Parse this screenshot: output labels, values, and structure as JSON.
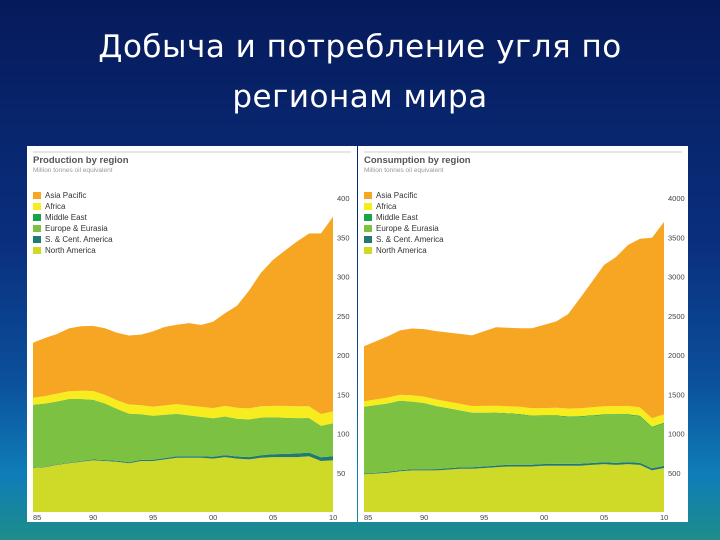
{
  "slide": {
    "title_line1": "Добыча и потребление угля по",
    "title_line2": "регионам мира"
  },
  "chart_data": [
    {
      "type": "area",
      "title": "Production by region",
      "subtitle": "Million tonnes oil equivalent",
      "x": [
        1985,
        1986,
        1987,
        1988,
        1989,
        1990,
        1991,
        1992,
        1993,
        1994,
        1995,
        1996,
        1997,
        1998,
        1999,
        2000,
        2001,
        2002,
        2003,
        2004,
        2005,
        2006,
        2007,
        2008,
        2009,
        2010
      ],
      "x_tick_labels": [
        "85",
        "90",
        "95",
        "00",
        "05",
        "10"
      ],
      "y_tick_labels": [
        "50",
        "100",
        "150",
        "200",
        "250",
        "300",
        "350",
        "400"
      ],
      "ylim": [
        0,
        4000
      ],
      "stacked": true,
      "series": [
        {
          "name": "North America",
          "color": "#cfd927",
          "values": [
            560,
            570,
            600,
            620,
            640,
            660,
            650,
            640,
            620,
            650,
            650,
            670,
            690,
            690,
            690,
            680,
            700,
            680,
            670,
            690,
            700,
            700,
            700,
            710,
            650,
            660
          ]
        },
        {
          "name": "S. & Cent. America",
          "color": "#1f7a73",
          "values": [
            5,
            6,
            7,
            8,
            9,
            10,
            11,
            12,
            13,
            14,
            15,
            17,
            19,
            20,
            21,
            23,
            25,
            27,
            29,
            32,
            36,
            40,
            45,
            47,
            48,
            50
          ]
        },
        {
          "name": "Europe & Eurasia",
          "color": "#7cc142",
          "values": [
            800,
            805,
            800,
            810,
            790,
            760,
            720,
            660,
            620,
            580,
            560,
            550,
            540,
            520,
            500,
            490,
            490,
            480,
            480,
            480,
            470,
            460,
            450,
            440,
            400,
            420
          ]
        },
        {
          "name": "Middle East",
          "color": "#16a34a",
          "values": [
            1,
            1,
            1,
            1,
            1,
            1,
            1,
            1,
            1,
            1,
            1,
            1,
            1,
            1,
            1,
            1,
            1,
            1,
            1,
            1,
            1,
            1,
            1,
            1,
            1,
            1
          ]
        },
        {
          "name": "Africa",
          "color": "#f7ec1e",
          "values": [
            90,
            95,
            100,
            100,
            105,
            110,
            110,
            110,
            115,
            115,
            115,
            120,
            125,
            125,
            130,
            130,
            135,
            140,
            140,
            145,
            145,
            150,
            150,
            150,
            150,
            150
          ]
        },
        {
          "name": "Asia Pacific",
          "color": "#f6a623",
          "values": [
            700,
            740,
            760,
            800,
            820,
            830,
            850,
            860,
            880,
            900,
            960,
            1000,
            1010,
            1050,
            1040,
            1100,
            1180,
            1300,
            1500,
            1700,
            1860,
            1980,
            2100,
            2200,
            2300,
            2480
          ]
        }
      ],
      "legend_position": "top-left",
      "grid": false
    },
    {
      "type": "area",
      "title": "Consumption by region",
      "subtitle": "Million tonnes oil equivalent",
      "x": [
        1985,
        1986,
        1987,
        1988,
        1989,
        1990,
        1991,
        1992,
        1993,
        1994,
        1995,
        1996,
        1997,
        1998,
        1999,
        2000,
        2001,
        2002,
        2003,
        2004,
        2005,
        2006,
        2007,
        2008,
        2009,
        2010
      ],
      "x_tick_labels": [
        "85",
        "90",
        "95",
        "00",
        "05",
        "10"
      ],
      "y_tick_labels": [
        "500",
        "1000",
        "1500",
        "2000",
        "2500",
        "3000",
        "3500",
        "4000"
      ],
      "ylim": [
        0,
        4000
      ],
      "stacked": true,
      "series": [
        {
          "name": "North America",
          "color": "#cfd927",
          "values": [
            480,
            490,
            500,
            520,
            530,
            530,
            530,
            540,
            550,
            550,
            560,
            570,
            580,
            580,
            580,
            590,
            590,
            590,
            590,
            600,
            610,
            600,
            610,
            600,
            530,
            560
          ]
        },
        {
          "name": "S. & Cent. America",
          "color": "#1f7a73",
          "values": [
            10,
            11,
            12,
            13,
            14,
            15,
            16,
            17,
            18,
            19,
            20,
            21,
            21,
            22,
            22,
            22,
            23,
            23,
            24,
            24,
            25,
            25,
            26,
            26,
            27,
            27
          ]
        },
        {
          "name": "Europe & Eurasia",
          "color": "#7cc142",
          "values": [
            850,
            860,
            870,
            880,
            860,
            840,
            800,
            760,
            720,
            690,
            680,
            670,
            650,
            640,
            620,
            610,
            610,
            600,
            600,
            600,
            600,
            610,
            600,
            590,
            520,
            540
          ]
        },
        {
          "name": "Middle East",
          "color": "#16a34a",
          "values": [
            2,
            2,
            2,
            3,
            3,
            3,
            4,
            4,
            5,
            5,
            5,
            5,
            6,
            6,
            6,
            7,
            7,
            7,
            8,
            8,
            8,
            9,
            9,
            9,
            9,
            9
          ]
        },
        {
          "name": "Africa",
          "color": "#f7ec1e",
          "values": [
            70,
            72,
            75,
            77,
            80,
            82,
            84,
            85,
            86,
            86,
            87,
            88,
            90,
            92,
            93,
            95,
            97,
            98,
            100,
            102,
            104,
            105,
            106,
            107,
            108,
            108
          ]
        },
        {
          "name": "Asia Pacific",
          "color": "#f6a623",
          "values": [
            700,
            740,
            780,
            820,
            850,
            860,
            870,
            880,
            890,
            900,
            950,
            1000,
            1000,
            1000,
            1020,
            1060,
            1100,
            1200,
            1400,
            1600,
            1800,
            1900,
            2050,
            2150,
            2300,
            2450
          ]
        }
      ],
      "legend_position": "top-left",
      "grid": false
    }
  ]
}
